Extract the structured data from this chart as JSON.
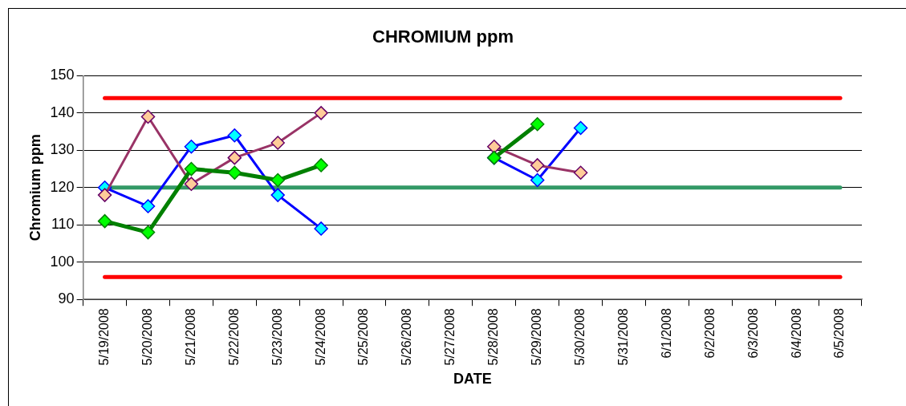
{
  "chart_data": {
    "type": "line",
    "title": "CHROMIUM ppm",
    "xlabel": "DATE",
    "ylabel": "Chromium ppm",
    "categories": [
      "5/19/2008",
      "5/20/2008",
      "5/21/2008",
      "5/22/2008",
      "5/23/2008",
      "5/24/2008",
      "5/25/2008",
      "5/26/2008",
      "5/27/2008",
      "5/28/2008",
      "5/29/2008",
      "5/30/2008",
      "5/31/2008",
      "6/1/2008",
      "6/2/2008",
      "6/3/2008",
      "6/4/2008",
      "6/5/2008"
    ],
    "series": [
      {
        "color": "#0000ff",
        "colors": [
          "#00ffff",
          "#00ffff",
          "#00ffff",
          "#00ffff",
          "#00ffff",
          "#00ffff",
          null,
          null,
          null,
          "#00ffff",
          "#00ffff",
          "#00ffff",
          null,
          null,
          null,
          null,
          null,
          null
        ],
        "values": [
          120,
          115,
          131,
          134,
          118,
          109,
          null,
          null,
          null,
          128,
          122,
          136,
          null,
          null,
          null,
          null,
          null,
          null
        ]
      },
      {
        "color": "#993366",
        "colors": [
          "#ffcc99",
          "#ffcc99",
          "#ffcc99",
          "#ffcc99",
          "#ffcc99",
          "#ffcc99",
          null,
          null,
          null,
          "#ffcc99",
          "#ffcc99",
          "#ffcc99",
          null,
          null,
          null,
          null,
          null,
          null
        ],
        "values": [
          118,
          139,
          121,
          128,
          132,
          140,
          null,
          null,
          null,
          131,
          126,
          124,
          null,
          null,
          null,
          null,
          null,
          null
        ]
      },
      {
        "color": "#008000",
        "colors": [
          "#00ff00",
          "#00ff00",
          "#00ff00",
          "#00ff00",
          "#00ff00",
          "#00ff00",
          null,
          null,
          null,
          "#00ff00",
          "#00ff00",
          null,
          null,
          null,
          null,
          null,
          null,
          null
        ],
        "values": [
          111,
          108,
          125,
          124,
          122,
          126,
          null,
          null,
          null,
          128,
          137,
          null,
          null,
          null,
          null,
          null,
          null,
          null
        ]
      }
    ],
    "ref_lines": [
      {
        "axis": "y",
        "value": 144,
        "color": "#ff0000"
      },
      {
        "axis": "y",
        "value": 120,
        "color": "#339966"
      },
      {
        "axis": "y",
        "value": 96,
        "color": "#ff0000"
      }
    ],
    "ylim": [
      90,
      150
    ],
    "yticks": [
      90,
      100,
      110,
      120,
      130,
      140,
      150
    ],
    "grid": "y",
    "legend": false,
    "marker": "diamond",
    "line_style": "solid"
  }
}
